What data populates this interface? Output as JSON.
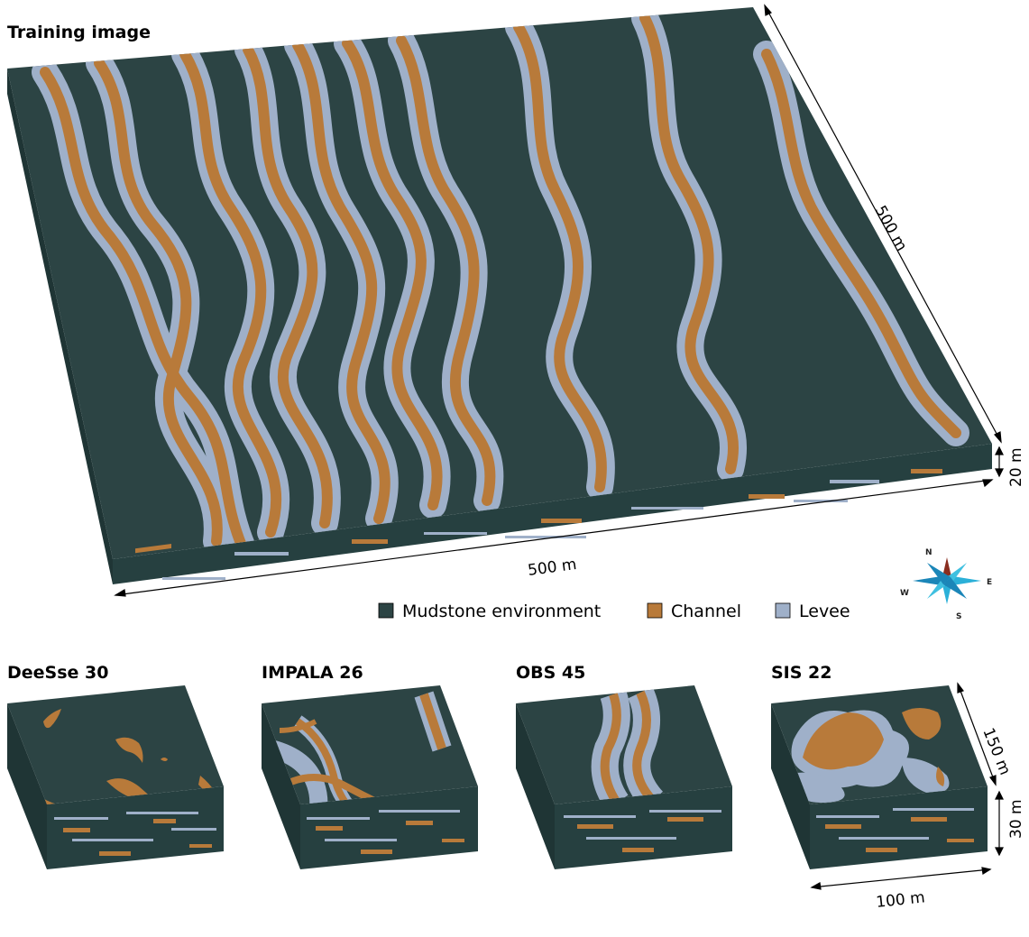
{
  "main": {
    "title": "Training image",
    "dims": {
      "width": "500 m",
      "depth": "500 m",
      "height": "20 m"
    }
  },
  "legend": {
    "items": [
      {
        "label": "Mudstone environment",
        "color": "#2c4444"
      },
      {
        "label": "Channel",
        "color": "#b87a3a"
      },
      {
        "label": "Levee",
        "color": "#9fb0c9"
      }
    ]
  },
  "compass": {
    "n": "N",
    "e": "E",
    "s": "S",
    "w": "W"
  },
  "panels": [
    {
      "title": "DeeSse 30"
    },
    {
      "title": "IMPALA 26"
    },
    {
      "title": "OBS 45"
    },
    {
      "title": "SIS 22"
    }
  ],
  "small_dims": {
    "width": "100 m",
    "depth": "150 m",
    "height": "30 m"
  },
  "colors": {
    "mudstone": "#2c4444",
    "mudstone_side": "#264040",
    "mudstone_left": "#1f3535",
    "channel": "#b87a3a",
    "levee": "#9fb0c9"
  }
}
